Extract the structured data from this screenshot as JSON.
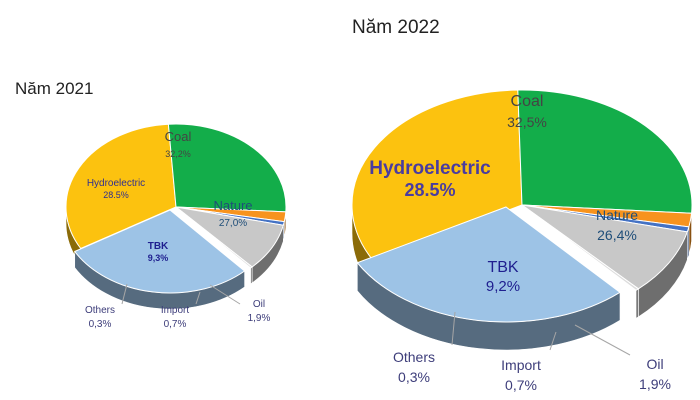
{
  "chart_data": [
    {
      "type": "pie",
      "style": "3d",
      "title": "Năm 2021",
      "slices": [
        {
          "name": "Coal",
          "value": 32.2,
          "value_label": "32,2%",
          "color": "#fcc20f"
        },
        {
          "name": "Nature",
          "value": 27.0,
          "value_label": "27,0%",
          "color": "#13ad4a"
        },
        {
          "name": "Oil",
          "value": 1.9,
          "value_label": "1,9%",
          "color": "#f7931e"
        },
        {
          "name": "Import",
          "value": 0.7,
          "value_label": "0,7%",
          "color": "#4472c4"
        },
        {
          "name": "TBK",
          "value": 9.3,
          "value_label": "9,3%",
          "color": "#c8c8c8"
        },
        {
          "name": "Others",
          "value": 0.3,
          "value_label": "0,3%",
          "color": "#dcdcdc"
        },
        {
          "name": "Hydroelectric",
          "value": 28.5,
          "value_label": "28.5%",
          "color": "#9dc3e6"
        }
      ]
    },
    {
      "type": "pie",
      "style": "3d",
      "title": "Năm 2022",
      "slices": [
        {
          "name": "Coal",
          "value": 32.5,
          "value_label": "32,5%",
          "color": "#fcc20f"
        },
        {
          "name": "Nature",
          "value": 26.4,
          "value_label": "26,4%",
          "color": "#13ad4a"
        },
        {
          "name": "Oil",
          "value": 1.9,
          "value_label": "1,9%",
          "color": "#f7931e"
        },
        {
          "name": "Import",
          "value": 0.7,
          "value_label": "0,7%",
          "color": "#4472c4"
        },
        {
          "name": "TBK",
          "value": 9.2,
          "value_label": "9,2%",
          "color": "#c8c8c8"
        },
        {
          "name": "Others",
          "value": 0.3,
          "value_label": "0,3%",
          "color": "#dcdcdc"
        },
        {
          "name": "Hydroelectric",
          "value": 28.5,
          "value_label": "28.5%",
          "color": "#9dc3e6"
        }
      ]
    }
  ]
}
